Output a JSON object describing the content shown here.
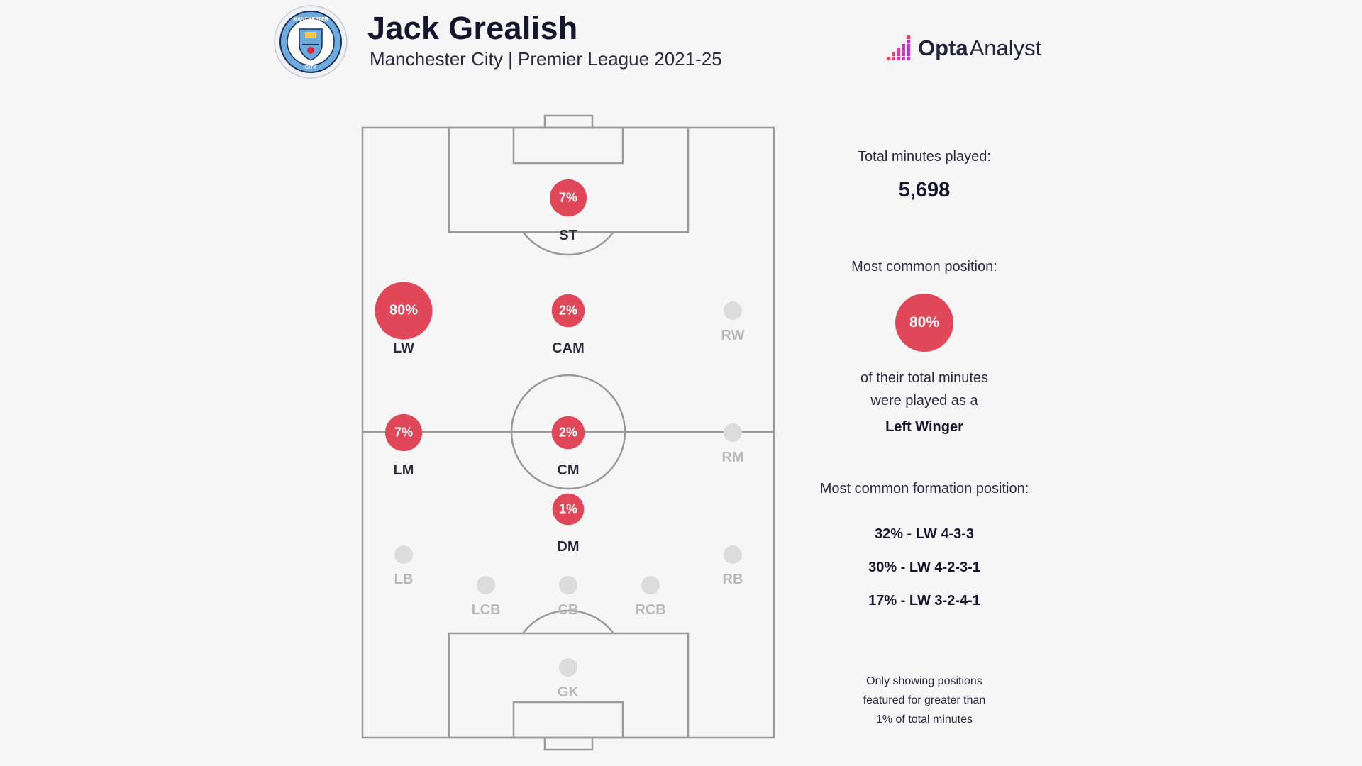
{
  "header": {
    "player_name": "Jack Grealish",
    "subtitle": "Manchester City | Premier League 2021-25",
    "crest_text_top": "MANCHESTER",
    "crest_text_bottom": "CITY",
    "brand_bold": "Opta",
    "brand_light": "Analyst"
  },
  "colors": {
    "active": "#e0485a",
    "inactive": "#dcdcdc",
    "pitch_lines": "#9a9a9a",
    "crest_blue": "#6cabdd",
    "crest_navy": "#1c2c5b"
  },
  "positions": [
    {
      "code": "ST",
      "pct": "7%",
      "value": 7,
      "active": true
    },
    {
      "code": "LW",
      "pct": "80%",
      "value": 80,
      "active": true
    },
    {
      "code": "CAM",
      "pct": "2%",
      "value": 2,
      "active": true
    },
    {
      "code": "RW",
      "pct": "",
      "value": 0,
      "active": false
    },
    {
      "code": "LM",
      "pct": "7%",
      "value": 7,
      "active": true
    },
    {
      "code": "CM",
      "pct": "2%",
      "value": 2,
      "active": true
    },
    {
      "code": "RM",
      "pct": "",
      "value": 0,
      "active": false
    },
    {
      "code": "DM",
      "pct": "1%",
      "value": 1,
      "active": true
    },
    {
      "code": "LB",
      "pct": "",
      "value": 0,
      "active": false
    },
    {
      "code": "RB",
      "pct": "",
      "value": 0,
      "active": false
    },
    {
      "code": "LCB",
      "pct": "",
      "value": 0,
      "active": false
    },
    {
      "code": "CB",
      "pct": "",
      "value": 0,
      "active": false
    },
    {
      "code": "RCB",
      "pct": "",
      "value": 0,
      "active": false
    },
    {
      "code": "GK",
      "pct": "",
      "value": 0,
      "active": false
    }
  ],
  "panel": {
    "minutes_label": "Total minutes played:",
    "minutes_value": "5,698",
    "common_label": "Most common position:",
    "common_pct": "80%",
    "common_desc_line1": "of their total minutes",
    "common_desc_line2": "were played as a",
    "common_role": "Left Winger",
    "formation_label": "Most common formation position:",
    "formations": [
      "32% - LW 4-3-3",
      "30% - LW 4-2-3-1",
      "17% - LW 3-2-4-1"
    ],
    "note_lines": [
      "Only showing positions",
      "featured for greater than",
      "1% of total minutes"
    ]
  }
}
